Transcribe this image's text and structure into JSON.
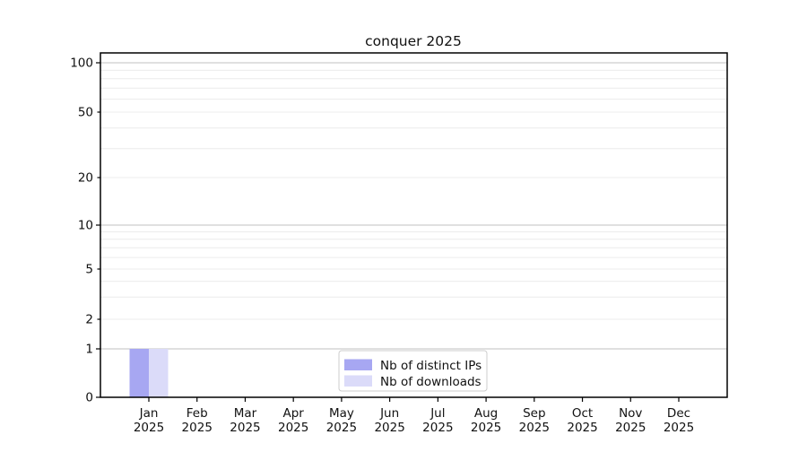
{
  "chart_data": {
    "type": "bar",
    "title": "conquer 2025",
    "categories": [
      "Jan",
      "Feb",
      "Mar",
      "Apr",
      "May",
      "Jun",
      "Jul",
      "Aug",
      "Sep",
      "Oct",
      "Nov",
      "Dec"
    ],
    "year_label": "2025",
    "series": [
      {
        "name": "Nb of distinct IPs",
        "color": "#a7a7f2",
        "values": [
          1,
          0,
          0,
          0,
          0,
          0,
          0,
          0,
          0,
          0,
          0,
          0
        ]
      },
      {
        "name": "Nb of downloads",
        "color": "#dbdbf9",
        "values": [
          1,
          0,
          0,
          0,
          0,
          0,
          0,
          0,
          0,
          0,
          0,
          0
        ]
      }
    ],
    "xlabel": "",
    "ylabel": "",
    "yscale": "symlog",
    "ylim": [
      0,
      110
    ],
    "y_ticks": [
      0,
      1,
      2,
      5,
      10,
      20,
      50,
      100
    ],
    "y_major_ticks": [
      0,
      1,
      10,
      100
    ],
    "y_minor_gridlines": [
      3,
      4,
      6,
      7,
      8,
      9,
      30,
      40,
      60,
      70,
      80,
      90
    ],
    "grid": true,
    "legend_position": "lower center",
    "colors": {
      "major_grid": "#c2c2c2",
      "minor_grid": "#ececec",
      "axis": "#000000",
      "text": "#111111"
    }
  }
}
